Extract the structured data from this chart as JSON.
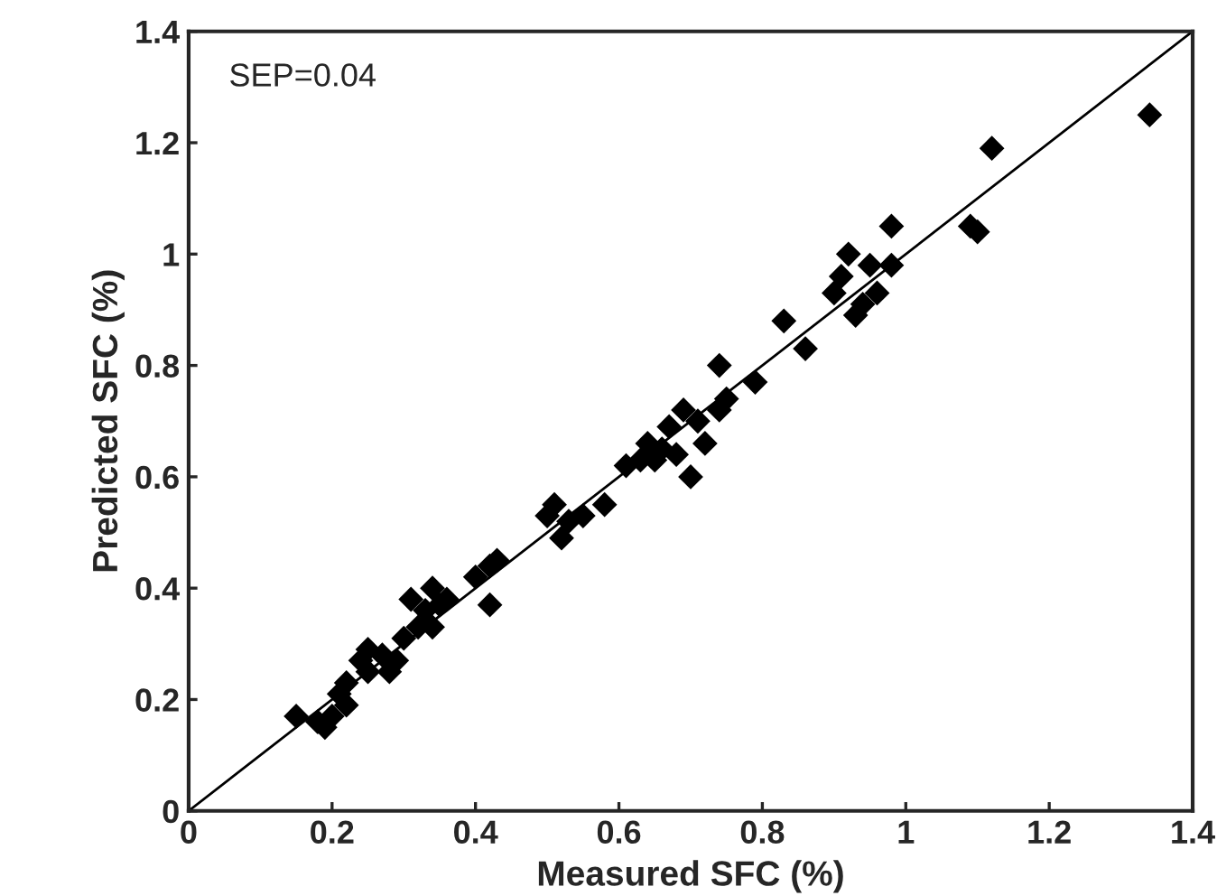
{
  "chart_data": {
    "type": "scatter",
    "xlabel": "Measured SFC (%)",
    "ylabel": "Predicted SFC (%)",
    "annotations": [
      "SEP=0.04"
    ],
    "xlim": [
      0,
      1.4
    ],
    "ylim": [
      0,
      1.4
    ],
    "xticks": [
      0,
      0.2,
      0.4,
      0.6,
      0.8,
      1,
      1.2,
      1.4
    ],
    "yticks": [
      0,
      0.2,
      0.4,
      0.6,
      0.8,
      1,
      1.2,
      1.4
    ],
    "grid": false,
    "legend": false,
    "series": [
      {
        "color": "#000000",
        "marker": "diamond",
        "x": [
          0.15,
          0.18,
          0.19,
          0.2,
          0.21,
          0.22,
          0.22,
          0.24,
          0.25,
          0.25,
          0.27,
          0.28,
          0.29,
          0.3,
          0.31,
          0.32,
          0.33,
          0.34,
          0.35,
          0.34,
          0.36,
          0.4,
          0.42,
          0.42,
          0.43,
          0.5,
          0.51,
          0.52,
          0.53,
          0.55,
          0.58,
          0.61,
          0.63,
          0.64,
          0.65,
          0.66,
          0.67,
          0.68,
          0.69,
          0.7,
          0.71,
          0.72,
          0.74,
          0.74,
          0.75,
          0.79,
          0.83,
          0.86,
          0.9,
          0.91,
          0.92,
          0.93,
          0.94,
          0.95,
          0.96,
          0.98,
          0.98,
          1.09,
          1.1,
          1.12,
          1.34
        ],
        "values": [
          0.17,
          0.16,
          0.15,
          0.17,
          0.21,
          0.23,
          0.19,
          0.27,
          0.29,
          0.25,
          0.28,
          0.25,
          0.27,
          0.31,
          0.38,
          0.33,
          0.36,
          0.4,
          0.37,
          0.33,
          0.38,
          0.42,
          0.44,
          0.37,
          0.45,
          0.53,
          0.55,
          0.49,
          0.52,
          0.53,
          0.55,
          0.62,
          0.63,
          0.66,
          0.63,
          0.65,
          0.69,
          0.64,
          0.72,
          0.6,
          0.7,
          0.66,
          0.72,
          0.8,
          0.74,
          0.77,
          0.88,
          0.83,
          0.93,
          0.96,
          1.0,
          0.89,
          0.91,
          0.98,
          0.93,
          1.05,
          0.98,
          1.05,
          1.04,
          1.19,
          1.25
        ]
      },
      {
        "type": "line",
        "marker": "none",
        "color": "#000000",
        "x": [
          0,
          1.4
        ],
        "values": [
          0,
          1.4
        ]
      }
    ]
  }
}
